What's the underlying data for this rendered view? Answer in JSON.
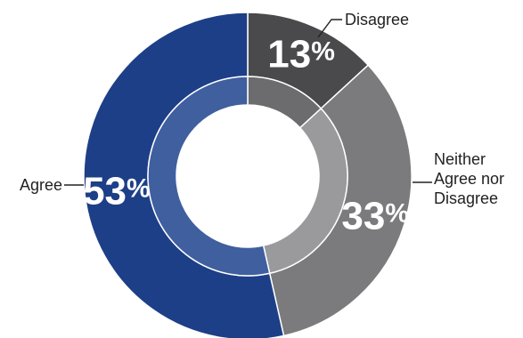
{
  "chart_data": {
    "type": "pie",
    "variant": "donut",
    "categories": [
      "Disagree",
      "Neither Agree nor Disagree",
      "Agree"
    ],
    "values": [
      13,
      33,
      53
    ],
    "value_labels": [
      "13%",
      "33%",
      "53%"
    ],
    "category_label_lines": [
      [
        "Disagree"
      ],
      [
        "Neither",
        "Agree nor",
        "Disagree"
      ],
      [
        "Agree"
      ]
    ],
    "colors": [
      "#4a4a4c",
      "#7b7b7d",
      "#1d3f87"
    ],
    "inner_ring_colors": [
      "#6c6c6e",
      "#9a9a9c",
      "#3f5f9f"
    ],
    "legend": "none"
  }
}
